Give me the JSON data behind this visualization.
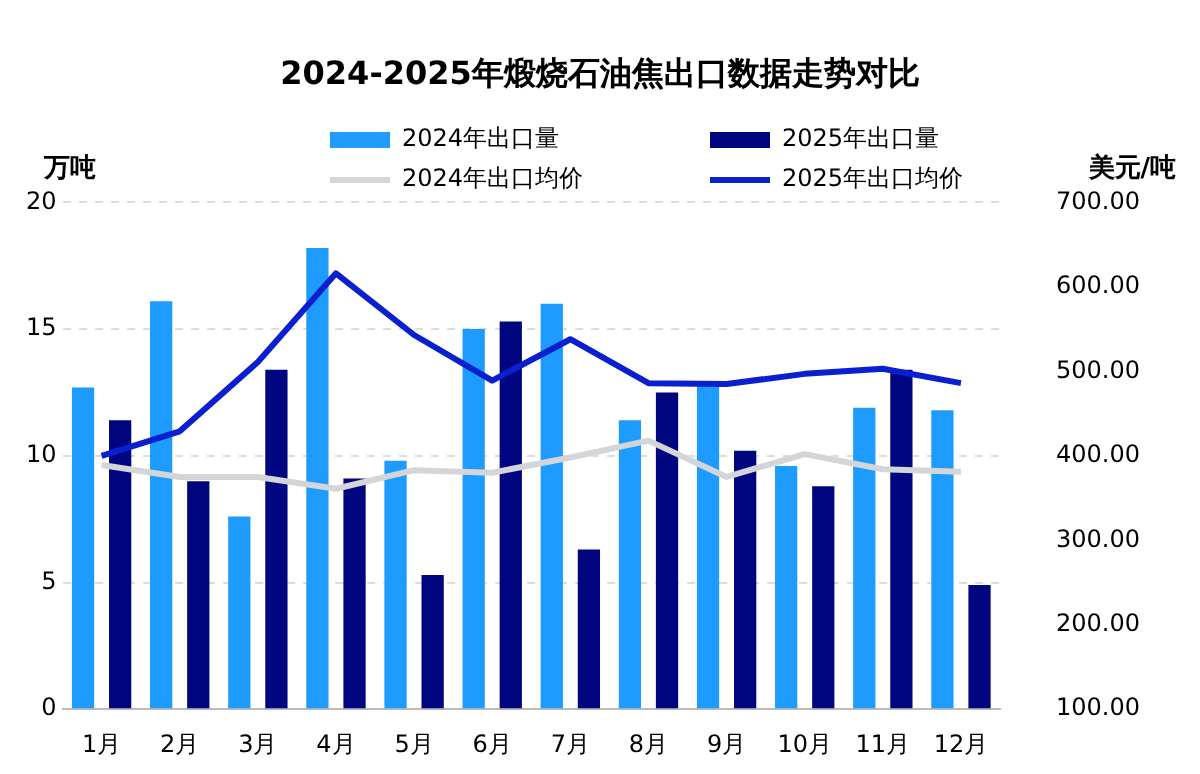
{
  "chart_data": {
    "type": "bar",
    "title": "2024-2025年煅烧石油焦出口数据走势对比",
    "ylabel": "万吨",
    "y2label": "美元/吨",
    "categories": [
      "1月",
      "2月",
      "3月",
      "4月",
      "5月",
      "6月",
      "7月",
      "8月",
      "9月",
      "10月",
      "11月",
      "12月"
    ],
    "series": [
      {
        "name": "2024年出口量",
        "color": "#1e9bff",
        "values": [
          12.7,
          16.1,
          7.6,
          18.2,
          9.8,
          15.0,
          16.0,
          11.4,
          12.8,
          9.6,
          11.9,
          11.8
        ]
      },
      {
        "name": "2025年出口量",
        "color": "#00067f",
        "values": [
          11.4,
          9.0,
          13.4,
          9.1,
          5.3,
          15.3,
          6.3,
          12.5,
          10.2,
          8.8,
          13.4,
          4.9
        ]
      },
      {
        "name": "2024年出口均价",
        "type": "line",
        "axis": "y2",
        "color": "#d3d5d8",
        "values": [
          389,
          375,
          375,
          361,
          383,
          380,
          398,
          418,
          375,
          402,
          384,
          381
        ]
      },
      {
        "name": "2025年出口均价",
        "type": "line",
        "axis": "y2",
        "color": "#0a1fd0",
        "values": [
          400,
          429,
          511,
          616,
          543,
          489,
          538,
          486,
          485,
          497,
          503,
          486
        ]
      }
    ],
    "ylim": [
      0,
      20
    ],
    "yticks": [
      0,
      5,
      10,
      15,
      20
    ],
    "y2lim": [
      100,
      700
    ],
    "y2ticks": [
      {
        "value": 100,
        "label": "100.00"
      },
      {
        "value": 200,
        "label": "200.00"
      },
      {
        "value": 300,
        "label": "300.00"
      },
      {
        "value": 400,
        "label": "400.00"
      },
      {
        "value": 500,
        "label": "500.00"
      },
      {
        "value": 600,
        "label": "600.00"
      },
      {
        "value": 700,
        "label": "700.00"
      }
    ],
    "grid": "y",
    "legend": "top",
    "marker": "none",
    "line_style": "solid"
  }
}
